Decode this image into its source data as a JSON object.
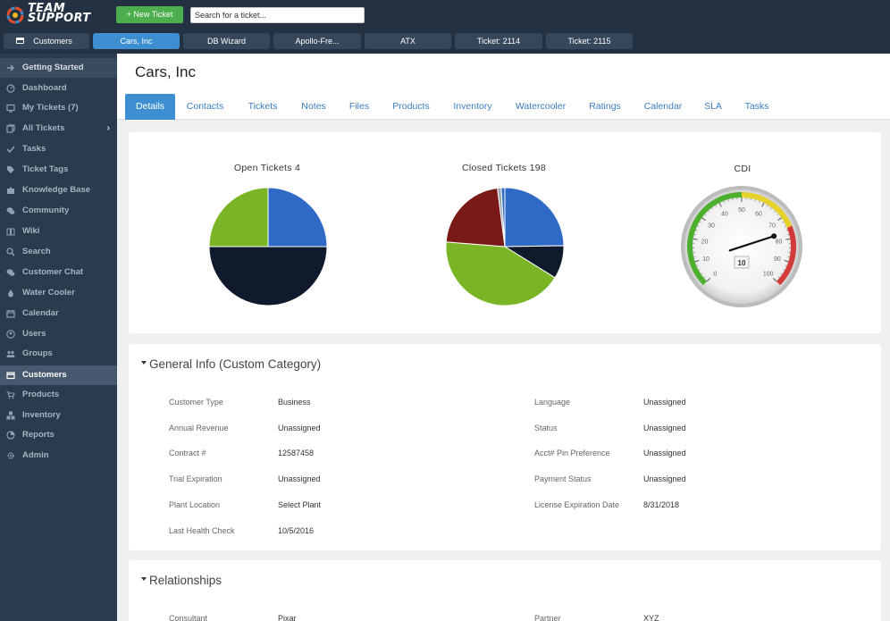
{
  "app": {
    "logo_text_line1": "TEAM",
    "logo_text_line2": "SUPPORT",
    "new_ticket_label": "+ New Ticket",
    "search_placeholder": "Search for a ticket..."
  },
  "top_tabs": [
    {
      "label": "Customers"
    },
    {
      "label": "Cars, Inc"
    },
    {
      "label": "DB Wizard"
    },
    {
      "label": "Apollo-Fre..."
    },
    {
      "label": "ATX"
    },
    {
      "label": "Ticket: 2114"
    },
    {
      "label": "Ticket: 2115"
    }
  ],
  "sidebar": {
    "items": [
      {
        "label": "Getting Started",
        "icon": "arrow-right-icon"
      },
      {
        "label": "Dashboard",
        "icon": "dashboard-icon"
      },
      {
        "label": "My Tickets (7)",
        "icon": "monitor-icon"
      },
      {
        "label": "All Tickets",
        "icon": "tickets-icon"
      },
      {
        "label": "Tasks",
        "icon": "checkmark-icon"
      },
      {
        "label": "Ticket Tags",
        "icon": "tag-icon"
      },
      {
        "label": "Knowledge Base",
        "icon": "puzzle-icon"
      },
      {
        "label": "Community",
        "icon": "chat-bubbles-icon"
      },
      {
        "label": "Wiki",
        "icon": "book-icon"
      },
      {
        "label": "Search",
        "icon": "search-icon"
      },
      {
        "label": "Customer Chat",
        "icon": "chat-icon"
      },
      {
        "label": "Water Cooler",
        "icon": "water-drop-icon"
      },
      {
        "label": "Calendar",
        "icon": "calendar-icon"
      },
      {
        "label": "Users",
        "icon": "user-icon"
      },
      {
        "label": "Groups",
        "icon": "group-icon"
      },
      {
        "label": "Customers",
        "icon": "card-icon"
      },
      {
        "label": "Products",
        "icon": "cart-icon"
      },
      {
        "label": "Inventory",
        "icon": "cubes-icon"
      },
      {
        "label": "Reports",
        "icon": "pie-icon"
      },
      {
        "label": "Admin",
        "icon": "gear-icon"
      }
    ],
    "all_tickets_arrow": "›"
  },
  "page": {
    "title": "Cars, Inc",
    "tabs": [
      {
        "label": "Details"
      },
      {
        "label": "Contacts"
      },
      {
        "label": "Tickets"
      },
      {
        "label": "Notes"
      },
      {
        "label": "Files"
      },
      {
        "label": "Products"
      },
      {
        "label": "Inventory"
      },
      {
        "label": "Watercooler"
      },
      {
        "label": "Ratings"
      },
      {
        "label": "Calendar"
      },
      {
        "label": "SLA"
      },
      {
        "label": "Tasks"
      }
    ]
  },
  "charts": {
    "open_title": "Open Tickets 4",
    "closed_title": "Closed Tickets 198",
    "cdi_title": "CDI",
    "cdi_value": "10",
    "gauge_ticks": [
      "0",
      "10",
      "20",
      "30",
      "40",
      "50",
      "60",
      "70",
      "80",
      "90",
      "100"
    ]
  },
  "chart_data": [
    {
      "type": "pie",
      "title": "Open Tickets 4",
      "slices": [
        {
          "value": 1,
          "color": "#2f6bc6"
        },
        {
          "value": 2,
          "color": "#0f1b2d"
        },
        {
          "value": 1,
          "color": "#7ab526"
        }
      ]
    },
    {
      "type": "pie",
      "title": "Closed Tickets 198",
      "slices": [
        {
          "value": 49,
          "color": "#2f6bc6"
        },
        {
          "value": 18,
          "color": "#0f1b2d"
        },
        {
          "value": 84,
          "color": "#7ab526"
        },
        {
          "value": 43,
          "color": "#7a1a17"
        },
        {
          "value": 2,
          "color": "#9aa5b3"
        },
        {
          "value": 2,
          "color": "#2f6bc6"
        }
      ]
    },
    {
      "type": "gauge",
      "title": "CDI",
      "value": 10,
      "range": [
        0,
        100
      ]
    }
  ],
  "general_info": {
    "title": "General Info (Custom Category)",
    "left": [
      {
        "label": "Customer Type",
        "value": "Business"
      },
      {
        "label": "Annual Revenue",
        "value": "Unassigned"
      },
      {
        "label": "Contract #",
        "value": "12587458"
      },
      {
        "label": "Trial Expiration",
        "value": "Unassigned"
      },
      {
        "label": "Plant Location",
        "value": "Select Plant"
      },
      {
        "label": "Last Health Check",
        "value": "10/5/2016"
      }
    ],
    "right": [
      {
        "label": "Language",
        "value": "Unassigned"
      },
      {
        "label": "Status",
        "value": "Unassigned"
      },
      {
        "label": "Acct# Pin Preference",
        "value": "Unassigned"
      },
      {
        "label": "Payment Status",
        "value": "Unassigned"
      },
      {
        "label": "License Expiration Date",
        "value": "8/31/2018"
      }
    ]
  },
  "relationships": {
    "title": "Relationships",
    "left": [
      {
        "label": "Consultant",
        "value": "Pixar"
      }
    ],
    "right": [
      {
        "label": "Partner",
        "value": "XYZ"
      }
    ]
  }
}
